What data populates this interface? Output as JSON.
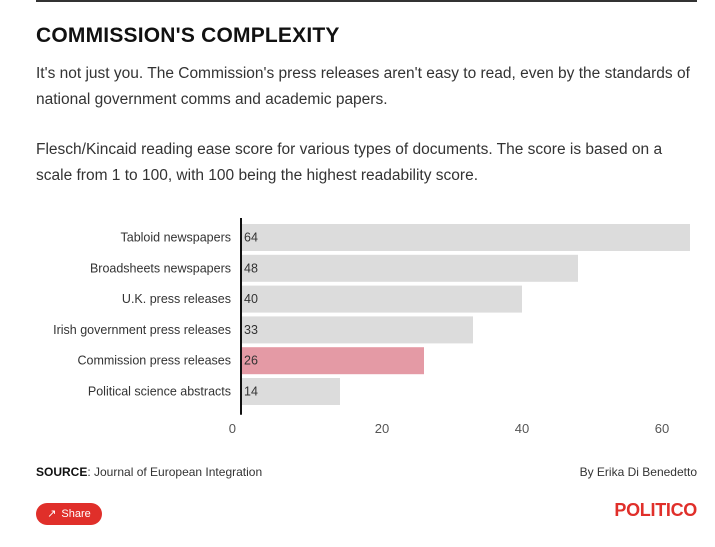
{
  "header": {
    "title": "COMMISSION'S COMPLEXITY",
    "intro": "It's not just you. The Commission's press releases aren't easy to read, even by the standards of national government comms and academic papers.",
    "description": "Flesch/Kincaid reading ease score for various types of documents. The score is based on a scale from 1 to 100, with 100 being the highest readability score."
  },
  "chart_data": {
    "type": "bar",
    "orientation": "horizontal",
    "categories": [
      "Tabloid newspapers",
      "Broadsheets newspapers",
      "U.K. press releases",
      "Irish government press releases",
      "Commission press releases",
      "Political science abstracts"
    ],
    "values": [
      64,
      48,
      40,
      33,
      26,
      14
    ],
    "highlight": "Commission press releases",
    "xticks": [
      0,
      20,
      40,
      60
    ],
    "xlim": [
      0,
      64
    ],
    "grid": false,
    "colors": {
      "bar": "#dcdcdc",
      "highlight": "#e49aa5",
      "axis": "#111111"
    }
  },
  "footer": {
    "source_label": "SOURCE",
    "source_text": ": Journal of European Integration",
    "byline": "By Erika Di Benedetto"
  },
  "share": {
    "icon": "share-icon",
    "label": "Share"
  },
  "brand": {
    "logo": "POLITICO",
    "color": "#e02f2a"
  }
}
